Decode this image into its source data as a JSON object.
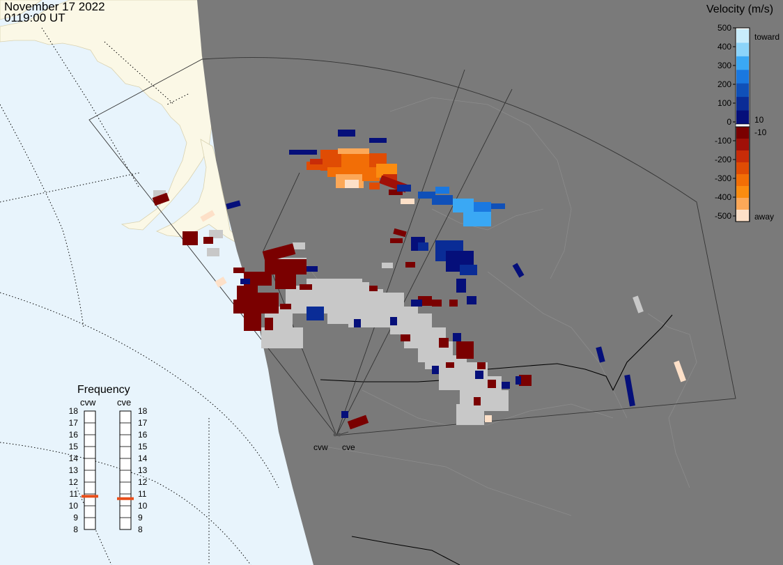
{
  "header": {
    "date": "November 17 2022",
    "time": "0119:00 UT"
  },
  "colors": {
    "ocean": "#e8f4fc",
    "land_outside_fov": "#fbf8e6",
    "night_shade": "#7a7a7a",
    "ground_scatter": "#c8c8c8",
    "boundaries": "#999999",
    "fov_outline": "#333333"
  },
  "legend": {
    "title": "Velocity (m/s)",
    "toward_label": "toward",
    "away_label": "away",
    "ticks": [
      "500",
      "400",
      "300",
      "200",
      "100",
      "0",
      "-100",
      "-200",
      "-300",
      "-400",
      "-500"
    ],
    "near_zero_ticks": [
      "10",
      "-10"
    ],
    "toward_colors": [
      "#c8ecfc",
      "#8cd4fa",
      "#3aa8f4",
      "#1a78e0",
      "#1050b8",
      "#0a2c96",
      "#050f7a"
    ],
    "away_colors": [
      "#7a0000",
      "#a01008",
      "#c82c08",
      "#e04c04",
      "#f26e06",
      "#fb8c10",
      "#fca858",
      "#fde0c8"
    ]
  },
  "frequency": {
    "title": "Frequency",
    "radars": [
      {
        "name": "cvw",
        "value": 10.8
      },
      {
        "name": "cve",
        "value": 10.6
      }
    ],
    "scale": [
      "18",
      "17",
      "16",
      "15",
      "14",
      "13",
      "12",
      "11",
      "10",
      "9",
      "8"
    ],
    "marker_color": "#e84e1a"
  },
  "sites": {
    "labels": [
      "cvw",
      "cve"
    ]
  }
}
